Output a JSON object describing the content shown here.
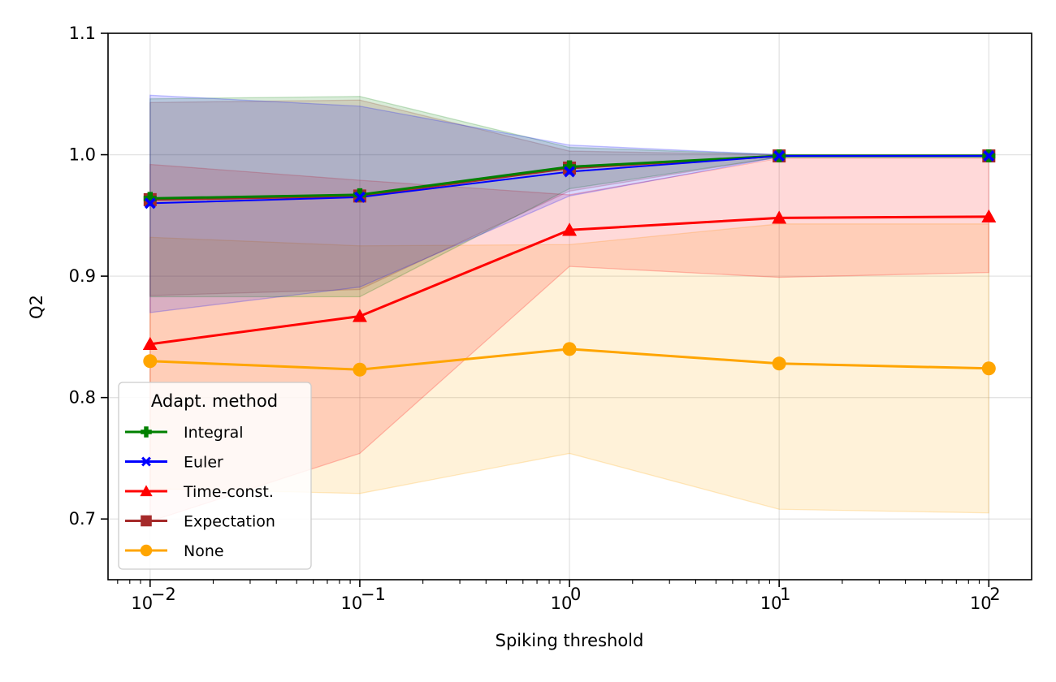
{
  "chart_data": {
    "type": "line",
    "title": "",
    "xlabel": "Spiking threshold",
    "ylabel": "Q2",
    "xscale": "log",
    "xlim": [
      0.0063,
      160
    ],
    "ylim": [
      0.65,
      1.1
    ],
    "x": [
      0.01,
      0.1,
      1,
      10,
      100
    ],
    "xticks": [
      {
        "value": 0.01,
        "base": "10",
        "exp": "−2"
      },
      {
        "value": 0.1,
        "base": "10",
        "exp": "−1"
      },
      {
        "value": 1,
        "base": "10",
        "exp": "0"
      },
      {
        "value": 10,
        "base": "10",
        "exp": "1"
      },
      {
        "value": 100,
        "base": "10",
        "exp": "2"
      }
    ],
    "yticks": [
      {
        "value": 0.7,
        "label": "0.7"
      },
      {
        "value": 0.8,
        "label": "0.8"
      },
      {
        "value": 0.9,
        "label": "0.9"
      },
      {
        "value": 1.0,
        "label": "1.0"
      },
      {
        "value": 1.1,
        "label": "1.1"
      }
    ],
    "grid": true,
    "legend": {
      "title": "Adapt. method",
      "position": "lower-left"
    },
    "series": [
      {
        "name": "None",
        "color": "#ffa500",
        "marker": "circle",
        "values": [
          0.83,
          0.823,
          0.84,
          0.828,
          0.824
        ],
        "lower": [
          0.725,
          0.721,
          0.754,
          0.708,
          0.705
        ],
        "upper": [
          0.932,
          0.925,
          0.926,
          0.943,
          0.943
        ]
      },
      {
        "name": "Time-const.",
        "color": "#ff0000",
        "marker": "triangle",
        "values": [
          0.844,
          0.867,
          0.938,
          0.948,
          0.949
        ],
        "lower": [
          0.698,
          0.754,
          0.908,
          0.899,
          0.903
        ],
        "upper": [
          0.992,
          0.979,
          0.967,
          0.997,
          0.997
        ]
      },
      {
        "name": "Expectation",
        "color": "#a52a2a",
        "marker": "square",
        "values": [
          0.963,
          0.966,
          0.989,
          0.999,
          0.999
        ],
        "lower": [
          0.884,
          0.889,
          0.97,
          0.998,
          0.998
        ],
        "upper": [
          1.043,
          1.045,
          1.003,
          1.0,
          1.0
        ]
      },
      {
        "name": "Integral",
        "color": "#008000",
        "marker": "plus",
        "values": [
          0.964,
          0.967,
          0.99,
          0.999,
          0.999
        ],
        "lower": [
          0.883,
          0.883,
          0.972,
          0.998,
          0.998
        ],
        "upper": [
          1.046,
          1.048,
          1.006,
          1.0,
          1.0
        ]
      },
      {
        "name": "Euler",
        "color": "#0000ff",
        "marker": "x-filled",
        "values": [
          0.96,
          0.965,
          0.986,
          0.999,
          0.999
        ],
        "lower": [
          0.87,
          0.891,
          0.966,
          0.998,
          0.998
        ],
        "upper": [
          1.049,
          1.04,
          1.008,
          1.0,
          1.0
        ]
      }
    ],
    "legend_order": [
      "Integral",
      "Euler",
      "Time-const.",
      "Expectation",
      "None"
    ]
  }
}
